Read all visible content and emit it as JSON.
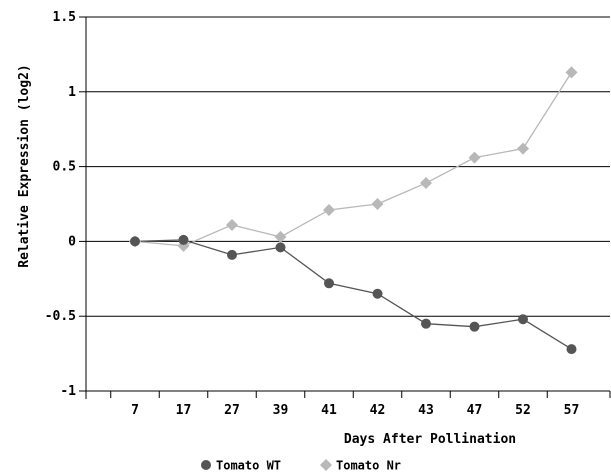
{
  "chart_data": {
    "type": "line",
    "xlabel": "Days After Pollination",
    "ylabel": "Relative Expression (log2)",
    "categories": [
      "7",
      "17",
      "27",
      "39",
      "41",
      "42",
      "43",
      "47",
      "52",
      "57"
    ],
    "y_ticks": [
      "1.5",
      "1",
      "0.5",
      "0",
      "-0.5",
      "-1"
    ],
    "ylim": [
      -1,
      1.5
    ],
    "grid": "horizontal",
    "legend_position": "bottom",
    "series": [
      {
        "name": "Tomato WT",
        "color": "#555555",
        "marker": "circle",
        "values": [
          0.0,
          0.01,
          -0.09,
          -0.04,
          -0.28,
          -0.35,
          -0.55,
          -0.57,
          -0.52,
          -0.72
        ]
      },
      {
        "name": "Tomato Nr",
        "color": "#b8b8b8",
        "marker": "diamond",
        "values": [
          0.0,
          -0.03,
          0.11,
          0.03,
          0.21,
          0.25,
          0.39,
          0.56,
          0.62,
          1.13
        ]
      }
    ]
  }
}
